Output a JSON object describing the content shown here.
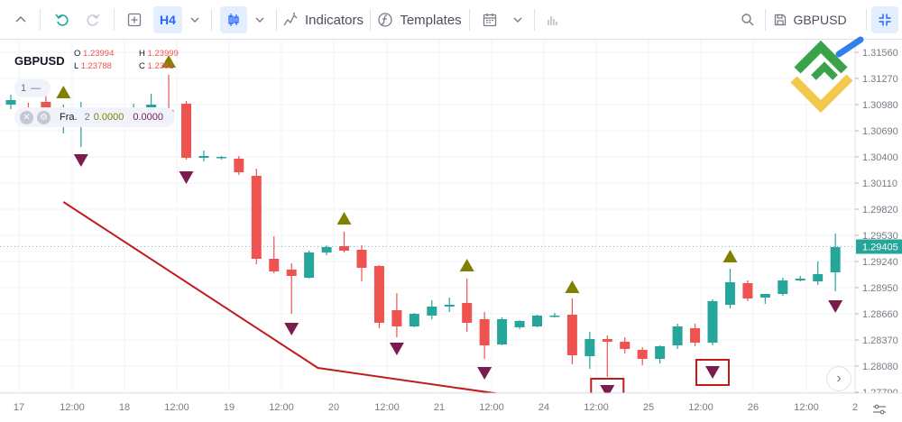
{
  "toolbar": {
    "timeframe": "H4",
    "indicators_label": "Indicators",
    "templates_label": "Templates",
    "symbol": "GBPUSD"
  },
  "legend": {
    "symbol": "GBPUSD",
    "open_key": "O",
    "open": "1.23994",
    "high_key": "H",
    "high": "1.23999",
    "low_key": "L",
    "low": "1.23788",
    "close_key": "C",
    "close": "1.2381",
    "interval": "1",
    "indicator_name": "Fra.",
    "indicator_param": "2",
    "indicator_value1": "0.0000",
    "indicator_value2": "0.0000"
  },
  "colors": {
    "up": "#26a69a",
    "down": "#ef5350",
    "fractal_up": "#808000",
    "fractal_down": "#7b1c4e",
    "trendline": "#c41a1a",
    "price_badge": "#26a69a"
  },
  "chart_data": {
    "type": "candlestick",
    "symbol": "GBPUSD",
    "timeframe": "H4",
    "price_ticks": [
      "1.31560",
      "1.31270",
      "1.30980",
      "1.30690",
      "1.30400",
      "1.30110",
      "1.29820",
      "1.29530",
      "1.29240",
      "1.28950",
      "1.28660",
      "1.28370",
      "1.28080",
      "1.27790"
    ],
    "current_price": "1.29405",
    "time_ticks": [
      "17",
      "12:00",
      "18",
      "12:00",
      "19",
      "12:00",
      "20",
      "12:00",
      "21",
      "12:00",
      "24",
      "12:00",
      "25",
      "12:00",
      "26",
      "12:00",
      "2"
    ],
    "ylim": [
      1.2775,
      1.3166
    ],
    "candles": [
      {
        "o": 1.3098,
        "h": 1.3109,
        "l": 1.3093,
        "c": 1.3103
      },
      {
        "o": 1.3095,
        "h": 1.31,
        "l": 1.309,
        "c": 1.3093
      },
      {
        "o": 1.3101,
        "h": 1.3109,
        "l": 1.3075,
        "c": 1.3086
      },
      {
        "o": 1.3074,
        "h": 1.3098,
        "l": 1.3066,
        "c": 1.3081
      },
      {
        "o": 1.3082,
        "h": 1.3101,
        "l": 1.3051,
        "c": 1.3087
      },
      {
        "o": 1.3078,
        "h": 1.309,
        "l": 1.3076,
        "c": 1.3084
      },
      {
        "o": 1.3083,
        "h": 1.3094,
        "l": 1.3079,
        "c": 1.3086
      },
      {
        "o": 1.308,
        "h": 1.3099,
        "l": 1.3075,
        "c": 1.3093
      },
      {
        "o": 1.3087,
        "h": 1.311,
        "l": 1.3078,
        "c": 1.3098
      },
      {
        "o": 1.3092,
        "h": 1.3131,
        "l": 1.3079,
        "c": 1.3085
      },
      {
        "o": 1.3099,
        "h": 1.3102,
        "l": 1.3037,
        "c": 1.3039
      },
      {
        "o": 1.3039,
        "h": 1.3047,
        "l": 1.3035,
        "c": 1.3041
      },
      {
        "o": 1.3039,
        "h": 1.3041,
        "l": 1.3037,
        "c": 1.304
      },
      {
        "o": 1.3038,
        "h": 1.3041,
        "l": 1.302,
        "c": 1.3023
      },
      {
        "o": 1.3019,
        "h": 1.3027,
        "l": 1.2921,
        "c": 1.2927
      },
      {
        "o": 1.2927,
        "h": 1.2952,
        "l": 1.2911,
        "c": 1.2913
      },
      {
        "o": 1.2915,
        "h": 1.2922,
        "l": 1.2866,
        "c": 1.2908
      },
      {
        "o": 1.2906,
        "h": 1.2936,
        "l": 1.2905,
        "c": 1.2934
      },
      {
        "o": 1.2934,
        "h": 1.2942,
        "l": 1.2931,
        "c": 1.294
      },
      {
        "o": 1.2941,
        "h": 1.2957,
        "l": 1.2934,
        "c": 1.2936
      },
      {
        "o": 1.2937,
        "h": 1.2942,
        "l": 1.2902,
        "c": 1.2917
      },
      {
        "o": 1.2919,
        "h": 1.292,
        "l": 1.285,
        "c": 1.2856
      },
      {
        "o": 1.287,
        "h": 1.2889,
        "l": 1.284,
        "c": 1.2852
      },
      {
        "o": 1.2852,
        "h": 1.2867,
        "l": 1.2851,
        "c": 1.2866
      },
      {
        "o": 1.2864,
        "h": 1.2881,
        "l": 1.286,
        "c": 1.2874
      },
      {
        "o": 1.2874,
        "h": 1.2884,
        "l": 1.2868,
        "c": 1.2876
      },
      {
        "o": 1.2878,
        "h": 1.2905,
        "l": 1.2846,
        "c": 1.2856
      },
      {
        "o": 1.286,
        "h": 1.2868,
        "l": 1.2816,
        "c": 1.2831
      },
      {
        "o": 1.2832,
        "h": 1.2862,
        "l": 1.2831,
        "c": 1.286
      },
      {
        "o": 1.2851,
        "h": 1.2859,
        "l": 1.2849,
        "c": 1.2858
      },
      {
        "o": 1.2852,
        "h": 1.2865,
        "l": 1.2851,
        "c": 1.2864
      },
      {
        "o": 1.2864,
        "h": 1.2867,
        "l": 1.2862,
        "c": 1.2864
      },
      {
        "o": 1.2865,
        "h": 1.2883,
        "l": 1.281,
        "c": 1.282
      },
      {
        "o": 1.2819,
        "h": 1.2846,
        "l": 1.2805,
        "c": 1.2838
      },
      {
        "o": 1.2838,
        "h": 1.2842,
        "l": 1.2796,
        "c": 1.2835
      },
      {
        "o": 1.2835,
        "h": 1.284,
        "l": 1.2822,
        "c": 1.2827
      },
      {
        "o": 1.2826,
        "h": 1.2829,
        "l": 1.2809,
        "c": 1.2816
      },
      {
        "o": 1.2816,
        "h": 1.2831,
        "l": 1.2811,
        "c": 1.283
      },
      {
        "o": 1.2831,
        "h": 1.2855,
        "l": 1.2827,
        "c": 1.2852
      },
      {
        "o": 1.285,
        "h": 1.2855,
        "l": 1.283,
        "c": 1.2834
      },
      {
        "o": 1.2834,
        "h": 1.2882,
        "l": 1.2831,
        "c": 1.288
      },
      {
        "o": 1.2876,
        "h": 1.2916,
        "l": 1.2872,
        "c": 1.2901
      },
      {
        "o": 1.29,
        "h": 1.2903,
        "l": 1.288,
        "c": 1.2883
      },
      {
        "o": 1.2884,
        "h": 1.2888,
        "l": 1.2877,
        "c": 1.2888
      },
      {
        "o": 1.2888,
        "h": 1.2906,
        "l": 1.2886,
        "c": 1.2903
      },
      {
        "o": 1.2903,
        "h": 1.2908,
        "l": 1.2902,
        "c": 1.2905
      },
      {
        "o": 1.2902,
        "h": 1.2924,
        "l": 1.2898,
        "c": 1.291
      },
      {
        "o": 1.2912,
        "h": 1.2955,
        "l": 1.2891,
        "c": 1.294
      }
    ],
    "fractals_up": [
      {
        "candle": 3,
        "price": 1.3112
      },
      {
        "candle": 9,
        "price": 1.3146
      },
      {
        "candle": 19,
        "price": 1.2972
      },
      {
        "candle": 26,
        "price": 1.292
      },
      {
        "candle": 32,
        "price": 1.2896
      },
      {
        "candle": 41,
        "price": 1.293
      }
    ],
    "fractals_down": [
      {
        "candle": 4,
        "price": 1.3036
      },
      {
        "candle": 10,
        "price": 1.3017
      },
      {
        "candle": 16,
        "price": 1.2849
      },
      {
        "candle": 22,
        "price": 1.2827
      },
      {
        "candle": 27,
        "price": 1.28
      },
      {
        "candle": 34,
        "price": 1.278
      },
      {
        "candle": 40,
        "price": 1.2801
      },
      {
        "candle": 47,
        "price": 1.2874
      }
    ],
    "highlighted_fractals": [
      34,
      40
    ],
    "trendline": [
      {
        "candle": 3.0,
        "price": 1.299
      },
      {
        "candle": 17.5,
        "price": 1.2806
      },
      {
        "candle": 34.0,
        "price": 1.276
      }
    ]
  }
}
